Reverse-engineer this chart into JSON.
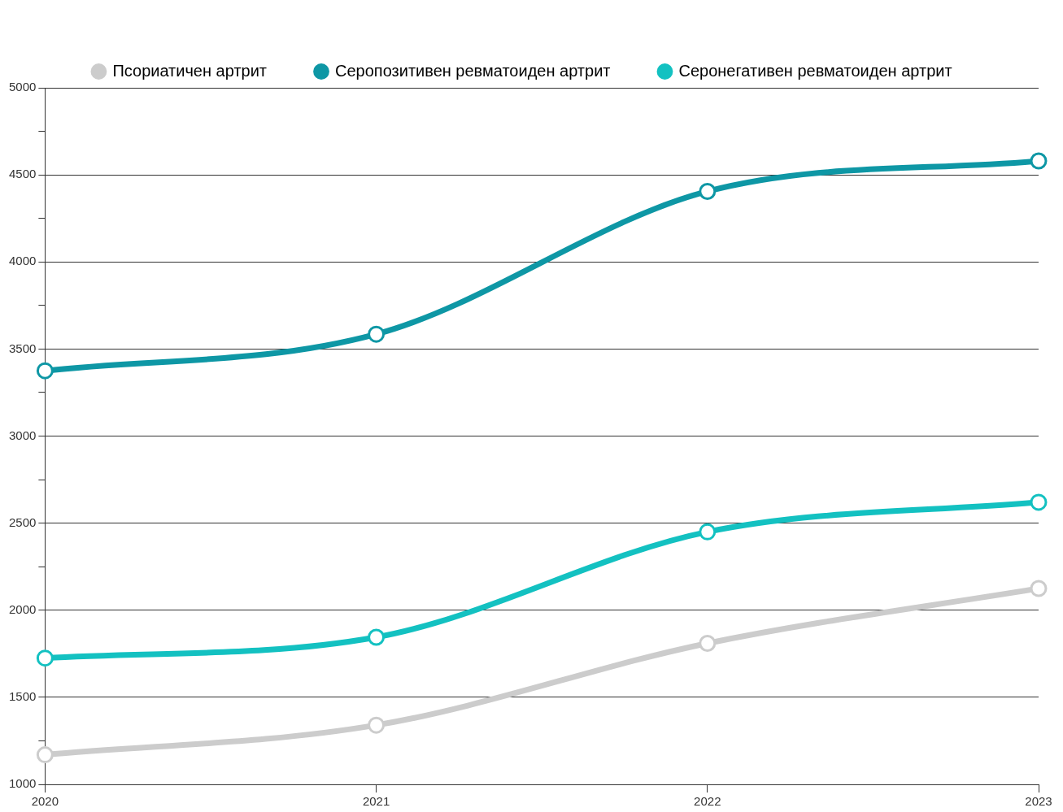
{
  "chart_data": {
    "type": "line",
    "categories": [
      "2020",
      "2021",
      "2022",
      "2023"
    ],
    "series": [
      {
        "name": "Псориатичен артрит",
        "color": "#cccccc",
        "values": [
          1170,
          1340,
          1810,
          2125
        ]
      },
      {
        "name": "Серопозитивен ревматоиден артрит",
        "color": "#0e97a5",
        "values": [
          3375,
          3585,
          4405,
          4580
        ]
      },
      {
        "name": "Серонегативен ревматоиден артрит",
        "color": "#13c1c1",
        "values": [
          1725,
          1845,
          2450,
          2620
        ]
      }
    ],
    "ylim": [
      1000,
      5000
    ],
    "yticks": [
      1000,
      {
        "value": 1250,
        "label": null
      },
      1500,
      {
        "value": 1750,
        "label": null
      },
      2000,
      {
        "value": 2250,
        "label": null
      },
      2500,
      {
        "value": 2750,
        "label": null
      },
      3000,
      {
        "value": 3250,
        "label": null
      },
      3500,
      {
        "value": 3750,
        "label": null
      },
      4000,
      {
        "value": 4250,
        "label": null
      },
      4500,
      {
        "value": 4750,
        "label": null
      },
      5000
    ],
    "grid": "y",
    "legend": "top",
    "marker": "circle",
    "line_style": "solid"
  }
}
